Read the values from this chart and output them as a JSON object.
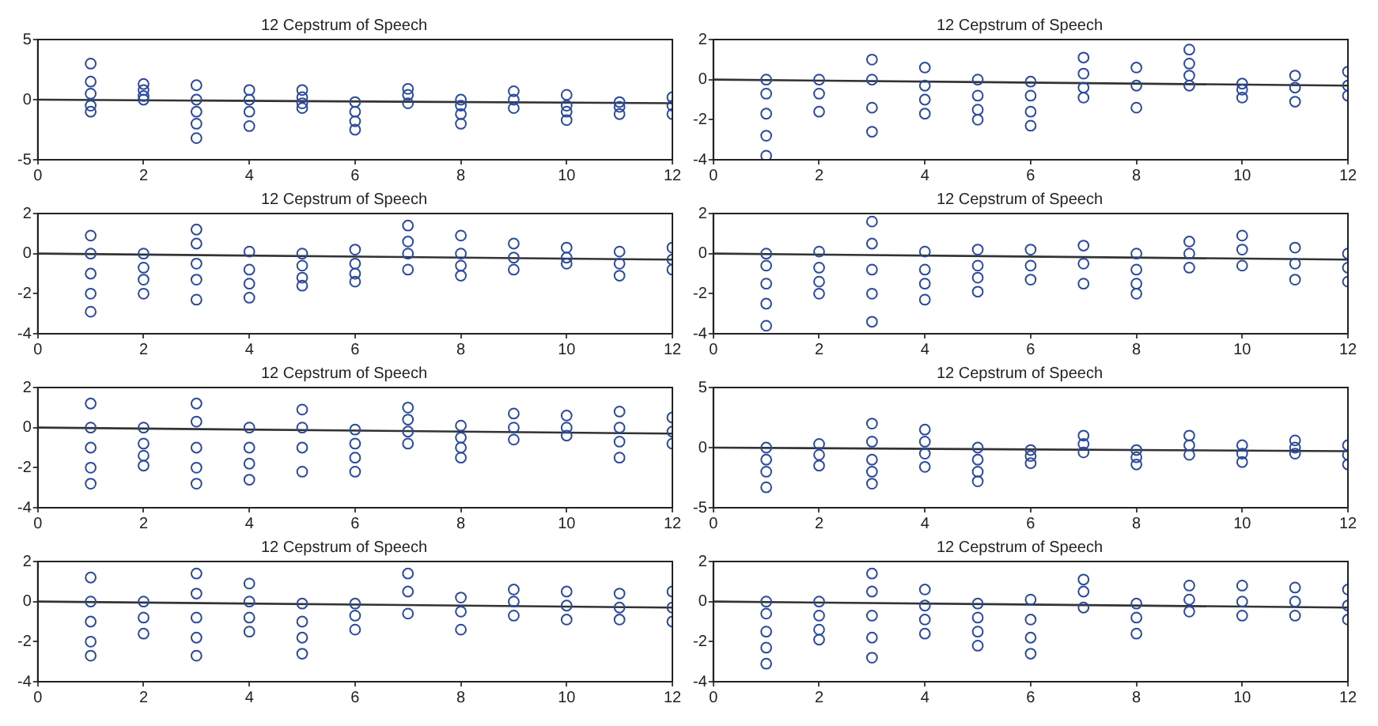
{
  "chart_data": [
    {
      "type": "scatter",
      "title": "12 Cepstrum of Speech",
      "xlim": [
        0,
        12
      ],
      "xticks": [
        0,
        2,
        4,
        6,
        8,
        10,
        12
      ],
      "ylim": [
        -5,
        5
      ],
      "yticks": [
        -5,
        0,
        5
      ],
      "series": [
        {
          "type": "scatter",
          "marker": "circle",
          "color": "#2b4a9c",
          "x": [
            1,
            1,
            1,
            1,
            1,
            2,
            2,
            2,
            2,
            3,
            3,
            3,
            3,
            3,
            4,
            4,
            4,
            4,
            5,
            5,
            5,
            5,
            6,
            6,
            6,
            6,
            7,
            7,
            7,
            8,
            8,
            8,
            8,
            9,
            9,
            9,
            10,
            10,
            10,
            10,
            11,
            11,
            11,
            12,
            12,
            12
          ],
          "values": [
            3,
            1.5,
            0.5,
            -0.5,
            -1,
            1.3,
            0.8,
            0.3,
            0,
            1.2,
            0,
            -1,
            -2,
            -3.2,
            0.8,
            0,
            -1,
            -2.2,
            0.8,
            0.2,
            -0.3,
            -0.7,
            -0.2,
            -1,
            -1.8,
            -2.5,
            0.9,
            0.4,
            -0.3,
            0,
            -0.5,
            -1.2,
            -2,
            0.7,
            0,
            -0.7,
            0.4,
            -0.5,
            -1,
            -1.7,
            -0.2,
            -0.6,
            -1.2,
            0.2,
            -0.5,
            -1.2
          ]
        },
        {
          "type": "line",
          "marker": "none",
          "color": "#333333",
          "x": [
            0,
            12
          ],
          "values": [
            0,
            -0.3
          ]
        }
      ]
    },
    {
      "type": "scatter",
      "title": "12 Cepstrum of Speech",
      "xlim": [
        0,
        12
      ],
      "xticks": [
        0,
        2,
        4,
        6,
        8,
        10,
        12
      ],
      "ylim": [
        -4,
        2
      ],
      "yticks": [
        -4,
        -2,
        0,
        2
      ],
      "series": [
        {
          "type": "scatter",
          "marker": "circle",
          "color": "#2b4a9c",
          "x": [
            1,
            1,
            1,
            1,
            1,
            2,
            2,
            2,
            3,
            3,
            3,
            3,
            4,
            4,
            4,
            4,
            5,
            5,
            5,
            5,
            6,
            6,
            6,
            6,
            7,
            7,
            7,
            7,
            8,
            8,
            8,
            9,
            9,
            9,
            9,
            10,
            10,
            10,
            11,
            11,
            11,
            12,
            12,
            12
          ],
          "values": [
            0,
            -0.7,
            -1.7,
            -2.8,
            -3.8,
            0,
            -0.7,
            -1.6,
            1,
            0,
            -1.4,
            -2.6,
            0.6,
            -0.3,
            -1,
            -1.7,
            0,
            -0.8,
            -1.5,
            -2,
            -0.1,
            -0.8,
            -1.6,
            -2.3,
            1.1,
            0.3,
            -0.4,
            -0.9,
            0.6,
            -0.3,
            -1.4,
            1.5,
            0.8,
            0.2,
            -0.3,
            -0.2,
            -0.5,
            -0.9,
            0.2,
            -0.4,
            -1.1,
            0.4,
            -0.3,
            -0.8
          ]
        },
        {
          "type": "line",
          "marker": "none",
          "color": "#333333",
          "x": [
            0,
            12
          ],
          "values": [
            0,
            -0.3
          ]
        }
      ]
    },
    {
      "type": "scatter",
      "title": "12 Cepstrum of Speech",
      "xlim": [
        0,
        12
      ],
      "xticks": [
        0,
        2,
        4,
        6,
        8,
        10,
        12
      ],
      "ylim": [
        -4,
        2
      ],
      "yticks": [
        -4,
        -2,
        0,
        2
      ],
      "series": [
        {
          "type": "scatter",
          "marker": "circle",
          "color": "#2b4a9c",
          "x": [
            1,
            1,
            1,
            1,
            1,
            2,
            2,
            2,
            2,
            3,
            3,
            3,
            3,
            3,
            4,
            4,
            4,
            4,
            5,
            5,
            5,
            5,
            6,
            6,
            6,
            6,
            7,
            7,
            7,
            7,
            8,
            8,
            8,
            8,
            9,
            9,
            9,
            10,
            10,
            10,
            11,
            11,
            11,
            12,
            12,
            12
          ],
          "values": [
            0.9,
            0,
            -1,
            -2,
            -2.9,
            0,
            -0.7,
            -1.3,
            -2,
            1.2,
            0.5,
            -0.5,
            -1.3,
            -2.3,
            0.1,
            -0.8,
            -1.5,
            -2.2,
            0,
            -0.6,
            -1.2,
            -1.6,
            0.2,
            -0.5,
            -1,
            -1.4,
            1.4,
            0.6,
            0,
            -0.8,
            0.9,
            0,
            -0.6,
            -1.1,
            0.5,
            -0.2,
            -0.8,
            0.3,
            -0.2,
            -0.5,
            0.1,
            -0.5,
            -1.1,
            0.3,
            -0.3,
            -0.8
          ]
        },
        {
          "type": "line",
          "marker": "none",
          "color": "#333333",
          "x": [
            0,
            12
          ],
          "values": [
            0,
            -0.3
          ]
        }
      ]
    },
    {
      "type": "scatter",
      "title": "12 Cepstrum of Speech",
      "xlim": [
        0,
        12
      ],
      "xticks": [
        0,
        2,
        4,
        6,
        8,
        10,
        12
      ],
      "ylim": [
        -4,
        2
      ],
      "yticks": [
        -4,
        -2,
        0,
        2
      ],
      "series": [
        {
          "type": "scatter",
          "marker": "circle",
          "color": "#2b4a9c",
          "x": [
            1,
            1,
            1,
            1,
            1,
            2,
            2,
            2,
            2,
            3,
            3,
            3,
            3,
            3,
            4,
            4,
            4,
            4,
            5,
            5,
            5,
            5,
            6,
            6,
            6,
            7,
            7,
            7,
            8,
            8,
            8,
            8,
            9,
            9,
            9,
            10,
            10,
            10,
            11,
            11,
            11,
            12,
            12,
            12
          ],
          "values": [
            0,
            -0.6,
            -1.5,
            -2.5,
            -3.6,
            0.1,
            -0.7,
            -1.4,
            -2,
            1.6,
            0.5,
            -0.8,
            -2,
            -3.4,
            0.1,
            -0.8,
            -1.5,
            -2.3,
            0.2,
            -0.6,
            -1.2,
            -1.9,
            0.2,
            -0.6,
            -1.3,
            0.4,
            -0.5,
            -1.5,
            0,
            -0.8,
            -1.5,
            -2,
            0.6,
            0,
            -0.7,
            0.9,
            0.2,
            -0.6,
            0.3,
            -0.5,
            -1.3,
            0,
            -0.7,
            -1.4
          ]
        },
        {
          "type": "line",
          "marker": "none",
          "color": "#333333",
          "x": [
            0,
            12
          ],
          "values": [
            0,
            -0.3
          ]
        }
      ]
    },
    {
      "type": "scatter",
      "title": "12 Cepstrum of Speech",
      "xlim": [
        0,
        12
      ],
      "xticks": [
        0,
        2,
        4,
        6,
        8,
        10,
        12
      ],
      "ylim": [
        -4,
        2
      ],
      "yticks": [
        -4,
        -2,
        0,
        2
      ],
      "series": [
        {
          "type": "scatter",
          "marker": "circle",
          "color": "#2b4a9c",
          "x": [
            1,
            1,
            1,
            1,
            1,
            2,
            2,
            2,
            2,
            3,
            3,
            3,
            3,
            3,
            4,
            4,
            4,
            4,
            5,
            5,
            5,
            5,
            6,
            6,
            6,
            6,
            7,
            7,
            7,
            7,
            8,
            8,
            8,
            8,
            9,
            9,
            9,
            10,
            10,
            10,
            11,
            11,
            11,
            11,
            12,
            12,
            12
          ],
          "values": [
            1.2,
            0,
            -1,
            -2,
            -2.8,
            0,
            -0.8,
            -1.4,
            -1.9,
            1.2,
            0.3,
            -1,
            -2,
            -2.8,
            0,
            -1,
            -1.8,
            -2.6,
            0.9,
            0,
            -1,
            -2.2,
            -0.1,
            -0.8,
            -1.5,
            -2.2,
            1,
            0.4,
            -0.2,
            -0.8,
            0.1,
            -0.5,
            -1,
            -1.5,
            0.7,
            0,
            -0.6,
            0.6,
            0,
            -0.4,
            0.8,
            0,
            -0.7,
            -1.5,
            0.5,
            -0.2,
            -0.8
          ]
        },
        {
          "type": "line",
          "marker": "none",
          "color": "#333333",
          "x": [
            0,
            12
          ],
          "values": [
            0,
            -0.3
          ]
        }
      ]
    },
    {
      "type": "scatter",
      "title": "12 Cepstrum of Speech",
      "xlim": [
        0,
        12
      ],
      "xticks": [
        0,
        2,
        4,
        6,
        8,
        10,
        12
      ],
      "ylim": [
        -5,
        5
      ],
      "yticks": [
        -5,
        0,
        5
      ],
      "series": [
        {
          "type": "scatter",
          "marker": "circle",
          "color": "#2b4a9c",
          "x": [
            1,
            1,
            1,
            1,
            2,
            2,
            2,
            3,
            3,
            3,
            3,
            3,
            4,
            4,
            4,
            4,
            5,
            5,
            5,
            5,
            6,
            6,
            6,
            7,
            7,
            7,
            8,
            8,
            8,
            9,
            9,
            9,
            10,
            10,
            10,
            11,
            11,
            11,
            12,
            12,
            12
          ],
          "values": [
            0,
            -1,
            -2,
            -3.3,
            0.3,
            -0.6,
            -1.5,
            2,
            0.5,
            -1,
            -2,
            -3,
            1.5,
            0.5,
            -0.5,
            -1.6,
            0,
            -1,
            -2,
            -2.8,
            -0.2,
            -0.7,
            -1.3,
            1,
            0.3,
            -0.4,
            -0.2,
            -0.8,
            -1.4,
            1,
            0.2,
            -0.6,
            0.2,
            -0.5,
            -1.2,
            0.6,
            0,
            -0.5,
            0.2,
            -0.6,
            -1.4
          ]
        },
        {
          "type": "line",
          "marker": "none",
          "color": "#333333",
          "x": [
            0,
            12
          ],
          "values": [
            0,
            -0.3
          ]
        }
      ]
    },
    {
      "type": "scatter",
      "title": "12 Cepstrum of Speech",
      "xlim": [
        0,
        12
      ],
      "xticks": [
        0,
        2,
        4,
        6,
        8,
        10,
        12
      ],
      "ylim": [
        -4,
        2
      ],
      "yticks": [
        -4,
        -2,
        0,
        2
      ],
      "series": [
        {
          "type": "scatter",
          "marker": "circle",
          "color": "#2b4a9c",
          "x": [
            1,
            1,
            1,
            1,
            1,
            2,
            2,
            2,
            3,
            3,
            3,
            3,
            3,
            4,
            4,
            4,
            4,
            5,
            5,
            5,
            5,
            6,
            6,
            6,
            7,
            7,
            7,
            8,
            8,
            8,
            9,
            9,
            9,
            10,
            10,
            10,
            11,
            11,
            11,
            12,
            12,
            12
          ],
          "values": [
            1.2,
            0,
            -1,
            -2,
            -2.7,
            0,
            -0.8,
            -1.6,
            1.4,
            0.4,
            -0.8,
            -1.8,
            -2.7,
            0.9,
            0,
            -0.8,
            -1.5,
            -0.1,
            -1,
            -1.8,
            -2.6,
            -0.1,
            -0.7,
            -1.4,
            1.4,
            0.5,
            -0.6,
            0.2,
            -0.5,
            -1.4,
            0.6,
            0,
            -0.7,
            0.5,
            -0.2,
            -0.9,
            0.4,
            -0.3,
            -0.9,
            0.5,
            -0.3,
            -1
          ]
        },
        {
          "type": "line",
          "marker": "none",
          "color": "#333333",
          "x": [
            0,
            12
          ],
          "values": [
            0,
            -0.3
          ]
        }
      ]
    },
    {
      "type": "scatter",
      "title": "12 Cepstrum of Speech",
      "xlim": [
        0,
        12
      ],
      "xticks": [
        0,
        2,
        4,
        6,
        8,
        10,
        12
      ],
      "ylim": [
        -4,
        2
      ],
      "yticks": [
        -4,
        -2,
        0,
        2
      ],
      "series": [
        {
          "type": "scatter",
          "marker": "circle",
          "color": "#2b4a9c",
          "x": [
            1,
            1,
            1,
            1,
            1,
            2,
            2,
            2,
            2,
            3,
            3,
            3,
            3,
            3,
            4,
            4,
            4,
            4,
            5,
            5,
            5,
            5,
            6,
            6,
            6,
            6,
            7,
            7,
            7,
            8,
            8,
            8,
            9,
            9,
            9,
            10,
            10,
            10,
            11,
            11,
            11,
            12,
            12,
            12
          ],
          "values": [
            0,
            -0.6,
            -1.5,
            -2.3,
            -3.1,
            0,
            -0.7,
            -1.4,
            -1.9,
            1.4,
            0.5,
            -0.7,
            -1.8,
            -2.8,
            0.6,
            -0.2,
            -0.9,
            -1.6,
            -0.1,
            -0.8,
            -1.5,
            -2.2,
            0.1,
            -0.9,
            -1.8,
            -2.6,
            1.1,
            0.5,
            -0.3,
            -0.1,
            -0.8,
            -1.6,
            0.8,
            0.1,
            -0.5,
            0.8,
            0,
            -0.7,
            0.7,
            0,
            -0.7,
            0.6,
            -0.2,
            -0.9
          ]
        },
        {
          "type": "line",
          "marker": "none",
          "color": "#333333",
          "x": [
            0,
            12
          ],
          "values": [
            0,
            -0.3
          ]
        }
      ]
    }
  ]
}
